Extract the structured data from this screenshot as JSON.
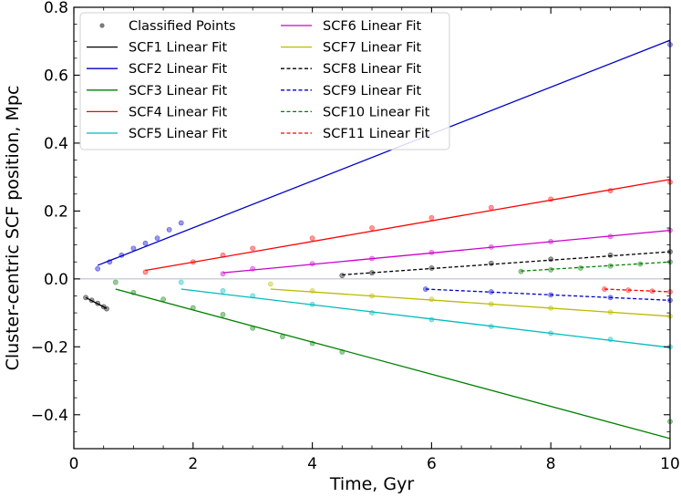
{
  "chart_data": {
    "type": "scatter",
    "title": "",
    "xlabel": "Time, Gyr",
    "ylabel": "Cluster-centric SCF position, Mpc",
    "xlim": [
      0,
      10
    ],
    "ylim": [
      -0.5,
      0.8
    ],
    "xticks": [
      0,
      2,
      4,
      6,
      8,
      10
    ],
    "yticks": [
      -0.4,
      -0.2,
      0.0,
      0.2,
      0.4,
      0.6,
      0.8
    ],
    "xtick_labels": [
      "0",
      "2",
      "4",
      "6",
      "8",
      "10"
    ],
    "ytick_labels": [
      "−0.4",
      "−0.2",
      "0.0",
      "0.2",
      "0.4",
      "0.6",
      "0.8"
    ],
    "zero_line": 0.0,
    "legend_position": "top-left",
    "classified_points": {
      "label": "Classified Points",
      "color": "#7a7a7a"
    },
    "series": [
      {
        "name": "SCF1",
        "label": "SCF1 Linear Fit",
        "color": "#000000",
        "style": "solid",
        "fit_x": [
          0.2,
          0.55
        ],
        "fit_y": [
          -0.055,
          -0.087
        ],
        "points": [
          [
            0.2,
            -0.055
          ],
          [
            0.3,
            -0.063
          ],
          [
            0.4,
            -0.072
          ],
          [
            0.5,
            -0.082
          ],
          [
            0.55,
            -0.088
          ]
        ]
      },
      {
        "name": "SCF2",
        "label": "SCF2 Linear Fit",
        "color": "#0000cc",
        "style": "solid",
        "fit_x": [
          0.4,
          10.0
        ],
        "fit_y": [
          0.04,
          0.703
        ],
        "points": [
          [
            0.4,
            0.03
          ],
          [
            0.6,
            0.05
          ],
          [
            0.8,
            0.07
          ],
          [
            1.0,
            0.09
          ],
          [
            1.2,
            0.105
          ],
          [
            1.4,
            0.12
          ],
          [
            1.6,
            0.145
          ],
          [
            1.8,
            0.165
          ],
          [
            10.0,
            0.69
          ]
        ]
      },
      {
        "name": "SCF3",
        "label": "SCF3 Linear Fit",
        "color": "#008000",
        "style": "solid",
        "fit_x": [
          0.7,
          10.0
        ],
        "fit_y": [
          -0.03,
          -0.47
        ],
        "points": [
          [
            0.7,
            -0.01
          ],
          [
            1.0,
            -0.04
          ],
          [
            1.5,
            -0.06
          ],
          [
            2.0,
            -0.085
          ],
          [
            2.5,
            -0.105
          ],
          [
            3.0,
            -0.145
          ],
          [
            3.5,
            -0.17
          ],
          [
            4.0,
            -0.19
          ],
          [
            4.5,
            -0.215
          ],
          [
            10.0,
            -0.42
          ]
        ]
      },
      {
        "name": "SCF4",
        "label": "SCF4 Linear Fit",
        "color": "#ff0000",
        "style": "solid",
        "fit_x": [
          1.2,
          10.0
        ],
        "fit_y": [
          0.025,
          0.293
        ],
        "points": [
          [
            1.2,
            0.02
          ],
          [
            2.0,
            0.05
          ],
          [
            2.5,
            0.07
          ],
          [
            3.0,
            0.09
          ],
          [
            4.0,
            0.12
          ],
          [
            5.0,
            0.15
          ],
          [
            6.0,
            0.18
          ],
          [
            7.0,
            0.21
          ],
          [
            8.0,
            0.235
          ],
          [
            9.0,
            0.26
          ],
          [
            10.0,
            0.285
          ]
        ]
      },
      {
        "name": "SCF5",
        "label": "SCF5 Linear Fit",
        "color": "#00bbbb",
        "style": "solid",
        "fit_x": [
          1.8,
          10.0
        ],
        "fit_y": [
          -0.03,
          -0.202
        ],
        "points": [
          [
            1.8,
            -0.01
          ],
          [
            2.5,
            -0.035
          ],
          [
            3.0,
            -0.05
          ],
          [
            4.0,
            -0.075
          ],
          [
            5.0,
            -0.1
          ],
          [
            6.0,
            -0.12
          ],
          [
            7.0,
            -0.14
          ],
          [
            8.0,
            -0.16
          ],
          [
            9.0,
            -0.178
          ],
          [
            10.0,
            -0.2
          ]
        ]
      },
      {
        "name": "SCF6",
        "label": "SCF6 Linear Fit",
        "color": "#cc00cc",
        "style": "solid",
        "fit_x": [
          2.5,
          10.0
        ],
        "fit_y": [
          0.018,
          0.143
        ],
        "points": [
          [
            2.5,
            0.015
          ],
          [
            3.0,
            0.03
          ],
          [
            4.0,
            0.045
          ],
          [
            5.0,
            0.06
          ],
          [
            6.0,
            0.078
          ],
          [
            7.0,
            0.094
          ],
          [
            8.0,
            0.11
          ],
          [
            9.0,
            0.125
          ],
          [
            10.0,
            0.143
          ]
        ]
      },
      {
        "name": "SCF7",
        "label": "SCF7 Linear Fit",
        "color": "#bbbb00",
        "style": "solid",
        "fit_x": [
          3.3,
          10.0
        ],
        "fit_y": [
          -0.03,
          -0.11
        ],
        "points": [
          [
            3.3,
            -0.015
          ],
          [
            4.0,
            -0.035
          ],
          [
            5.0,
            -0.05
          ],
          [
            6.0,
            -0.06
          ],
          [
            7.0,
            -0.074
          ],
          [
            8.0,
            -0.086
          ],
          [
            9.0,
            -0.098
          ],
          [
            10.0,
            -0.11
          ]
        ]
      },
      {
        "name": "SCF8",
        "label": "SCF8 Linear Fit",
        "color": "#000000",
        "style": "dashed",
        "fit_x": [
          4.5,
          10.0
        ],
        "fit_y": [
          0.012,
          0.08
        ],
        "points": [
          [
            4.5,
            0.01
          ],
          [
            5.0,
            0.018
          ],
          [
            6.0,
            0.032
          ],
          [
            7.0,
            0.046
          ],
          [
            8.0,
            0.058
          ],
          [
            9.0,
            0.07
          ],
          [
            10.0,
            0.08
          ]
        ]
      },
      {
        "name": "SCF9",
        "label": "SCF9 Linear Fit",
        "color": "#0000cc",
        "style": "dashed",
        "fit_x": [
          5.9,
          10.0
        ],
        "fit_y": [
          -0.03,
          -0.063
        ],
        "points": [
          [
            5.9,
            -0.03
          ],
          [
            7.0,
            -0.038
          ],
          [
            8.0,
            -0.047
          ],
          [
            9.0,
            -0.055
          ],
          [
            10.0,
            -0.063
          ]
        ]
      },
      {
        "name": "SCF10",
        "label": "SCF10 Linear Fit",
        "color": "#008000",
        "style": "dashed",
        "fit_x": [
          7.5,
          10.0
        ],
        "fit_y": [
          0.023,
          0.05
        ],
        "points": [
          [
            7.5,
            0.022
          ],
          [
            8.0,
            0.027
          ],
          [
            8.5,
            0.032
          ],
          [
            9.0,
            0.038
          ],
          [
            9.5,
            0.044
          ],
          [
            10.0,
            0.05
          ]
        ]
      },
      {
        "name": "SCF11",
        "label": "SCF11 Linear Fit",
        "color": "#ff0000",
        "style": "dashed",
        "fit_x": [
          8.9,
          10.0
        ],
        "fit_y": [
          -0.03,
          -0.038
        ],
        "points": [
          [
            8.9,
            -0.03
          ],
          [
            9.3,
            -0.033
          ],
          [
            9.7,
            -0.036
          ],
          [
            10.0,
            -0.038
          ]
        ]
      }
    ]
  }
}
